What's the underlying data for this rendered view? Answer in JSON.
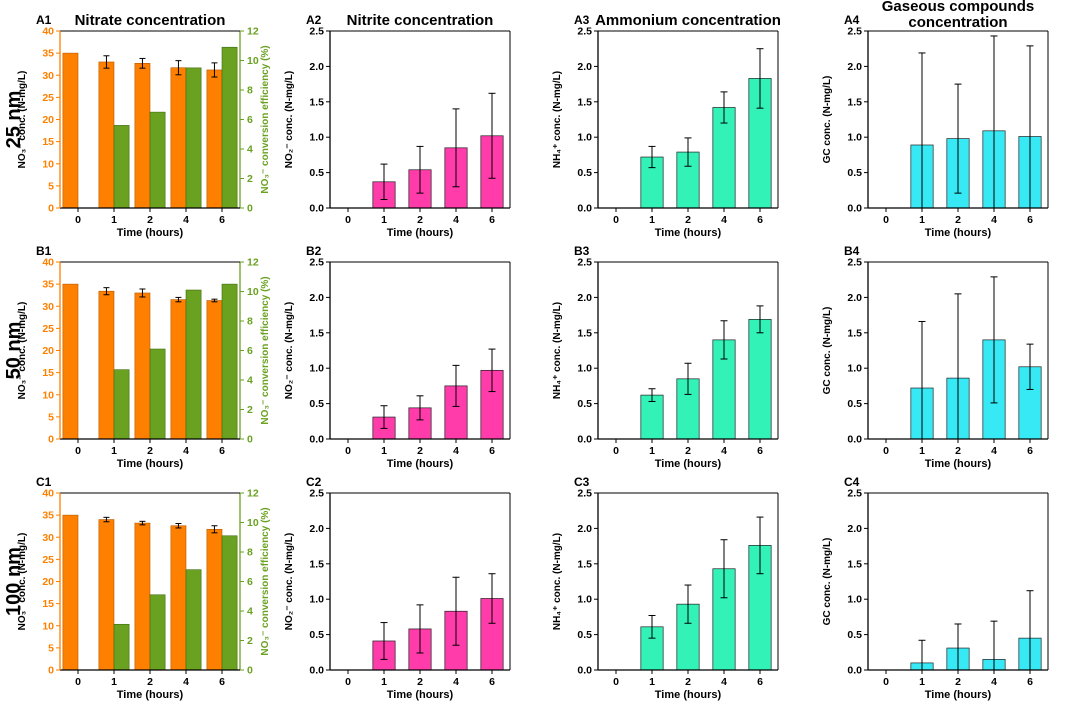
{
  "figure": {
    "row_labels": [
      "25 nm",
      "50 nm",
      "100 nm"
    ],
    "colors": {
      "nitrate": "#ff8000",
      "efficiency": "#6aa121",
      "nitrite": "#ff3caa",
      "ammonium": "#33f2b8",
      "gaseous": "#36e9f5",
      "axis": "#000000"
    }
  },
  "chart_data": [
    {
      "id": "A1",
      "type": "bar",
      "title": "Nitrate concentration",
      "panel_label": "A1",
      "categories": [
        "0",
        "1",
        "2",
        "4",
        "6"
      ],
      "xlabel": "Time (hours)",
      "ylabel": "NO₃⁻ conc. (N-mg/L)",
      "ylim": [
        0,
        40
      ],
      "yticks": [
        "0",
        "5",
        "10",
        "15",
        "20",
        "25",
        "30",
        "35",
        "40"
      ],
      "y2label": "NO₃⁻ conversion efficiency (%)",
      "y2lim": [
        0,
        12
      ],
      "y2ticks": [
        "0",
        "2",
        "4",
        "6",
        "8",
        "10",
        "12"
      ],
      "series": [
        {
          "name": "NO₃⁻ conc.",
          "values": [
            35.0,
            33.0,
            32.7,
            31.7,
            31.2
          ],
          "errors": [
            0,
            1.4,
            1.1,
            1.6,
            1.6
          ]
        },
        {
          "name": "NO₃⁻ conversion efficiency",
          "values": [
            0,
            5.6,
            6.5,
            9.5,
            10.9
          ],
          "errors": [
            0,
            0,
            0,
            0,
            0
          ]
        }
      ]
    },
    {
      "id": "A2",
      "type": "bar",
      "title": "Nitrite concentration",
      "panel_label": "A2",
      "categories": [
        "0",
        "1",
        "2",
        "4",
        "6"
      ],
      "xlabel": "Time (hours)",
      "ylabel": "NO₂⁻ conc. (N-mg/L)",
      "ylim": [
        0,
        2.5
      ],
      "yticks": [
        "0.0",
        "0.5",
        "1.0",
        "1.5",
        "2.0",
        "2.5"
      ],
      "series": [
        {
          "name": "NO₂⁻ conc.",
          "values": [
            0,
            0.37,
            0.54,
            0.85,
            1.02
          ],
          "errors": [
            0,
            0.25,
            0.33,
            0.55,
            0.6
          ]
        }
      ]
    },
    {
      "id": "A3",
      "type": "bar",
      "title": "Ammonium concentration",
      "panel_label": "A3",
      "categories": [
        "0",
        "1",
        "2",
        "4",
        "6"
      ],
      "xlabel": "Time (hours)",
      "ylabel": "NH₄⁺ conc. (N-mg/L)",
      "ylim": [
        0,
        2.5
      ],
      "yticks": [
        "0.0",
        "0.5",
        "1.0",
        "1.5",
        "2.0",
        "2.5"
      ],
      "series": [
        {
          "name": "NH₄⁺ conc.",
          "values": [
            0,
            0.72,
            0.79,
            1.42,
            1.83
          ],
          "errors": [
            0,
            0.15,
            0.2,
            0.22,
            0.42
          ]
        }
      ]
    },
    {
      "id": "A4",
      "type": "bar",
      "title": "Gaseous compounds concentration",
      "panel_label": "A4",
      "categories": [
        "0",
        "1",
        "2",
        "4",
        "6"
      ],
      "xlabel": "Time (hours)",
      "ylabel": "GC conc. (N-mg/L)",
      "ylim": [
        0,
        2.5
      ],
      "yticks": [
        "0.0",
        "0.5",
        "1.0",
        "1.5",
        "2.0",
        "2.5"
      ],
      "series": [
        {
          "name": "GC conc.",
          "values": [
            0,
            0.89,
            0.98,
            1.09,
            1.01
          ],
          "errors": [
            0,
            1.3,
            0.77,
            1.34,
            1.28
          ]
        }
      ]
    },
    {
      "id": "B1",
      "type": "bar",
      "title": "",
      "panel_label": "B1",
      "categories": [
        "0",
        "1",
        "2",
        "4",
        "6"
      ],
      "xlabel": "Time (hours)",
      "ylabel": "NO₃⁻ conc. (N-mg/L)",
      "ylim": [
        0,
        40
      ],
      "yticks": [
        "0",
        "5",
        "10",
        "15",
        "20",
        "25",
        "30",
        "35",
        "40"
      ],
      "y2label": "NO₃⁻ conversion efficiency (%)",
      "y2lim": [
        0,
        12
      ],
      "y2ticks": [
        "0",
        "2",
        "4",
        "6",
        "8",
        "10",
        "12"
      ],
      "series": [
        {
          "name": "NO₃⁻ conc.",
          "values": [
            35.0,
            33.4,
            33.0,
            31.5,
            31.3
          ],
          "errors": [
            0,
            0.8,
            0.9,
            0.5,
            0.3
          ]
        },
        {
          "name": "NO₃⁻ conversion efficiency",
          "values": [
            0,
            4.7,
            6.1,
            10.1,
            10.5
          ],
          "errors": [
            0,
            0,
            0,
            0,
            0
          ]
        }
      ]
    },
    {
      "id": "B2",
      "type": "bar",
      "title": "",
      "panel_label": "B2",
      "categories": [
        "0",
        "1",
        "2",
        "4",
        "6"
      ],
      "xlabel": "Time (hours)",
      "ylabel": "NO₂⁻ conc. (N-mg/L)",
      "ylim": [
        0,
        2.5
      ],
      "yticks": [
        "0.0",
        "0.5",
        "1.0",
        "1.5",
        "2.0",
        "2.5"
      ],
      "series": [
        {
          "name": "NO₂⁻ conc.",
          "values": [
            0,
            0.31,
            0.44,
            0.75,
            0.97
          ],
          "errors": [
            0,
            0.16,
            0.17,
            0.29,
            0.3
          ]
        }
      ]
    },
    {
      "id": "B3",
      "type": "bar",
      "title": "",
      "panel_label": "B3",
      "categories": [
        "0",
        "1",
        "2",
        "4",
        "6"
      ],
      "xlabel": "Time (hours)",
      "ylabel": "NH₄⁺ conc. (N-mg/L)",
      "ylim": [
        0,
        2.5
      ],
      "yticks": [
        "0.0",
        "0.5",
        "1.0",
        "1.5",
        "2.0",
        "2.5"
      ],
      "series": [
        {
          "name": "NH₄⁺ conc.",
          "values": [
            0,
            0.62,
            0.85,
            1.4,
            1.69
          ],
          "errors": [
            0,
            0.09,
            0.22,
            0.27,
            0.19
          ]
        }
      ]
    },
    {
      "id": "B4",
      "type": "bar",
      "title": "",
      "panel_label": "B4",
      "categories": [
        "0",
        "1",
        "2",
        "4",
        "6"
      ],
      "xlabel": "Time (hours)",
      "ylabel": "GC conc. (N-mg/L)",
      "ylim": [
        0,
        2.5
      ],
      "yticks": [
        "0.0",
        "0.5",
        "1.0",
        "1.5",
        "2.0",
        "2.5"
      ],
      "series": [
        {
          "name": "GC conc.",
          "values": [
            0,
            0.72,
            0.86,
            1.4,
            1.02
          ],
          "errors": [
            0,
            0.94,
            1.19,
            0.89,
            0.32
          ]
        }
      ]
    },
    {
      "id": "C1",
      "type": "bar",
      "title": "",
      "panel_label": "C1",
      "categories": [
        "0",
        "1",
        "2",
        "4",
        "6"
      ],
      "xlabel": "Time (hours)",
      "ylabel": "NO₃⁻ conc. (N-mg/L)",
      "ylim": [
        0,
        40
      ],
      "yticks": [
        "0",
        "5",
        "10",
        "15",
        "20",
        "25",
        "30",
        "35",
        "40"
      ],
      "y2label": "NO₃⁻ conversion efficiency (%)",
      "y2lim": [
        0,
        12
      ],
      "y2ticks": [
        "0",
        "2",
        "4",
        "6",
        "8",
        "10",
        "12"
      ],
      "series": [
        {
          "name": "NO₃⁻ conc.",
          "values": [
            35.0,
            34.0,
            33.2,
            32.6,
            31.8
          ],
          "errors": [
            0,
            0.5,
            0.4,
            0.5,
            0.8
          ]
        },
        {
          "name": "NO₃⁻ conversion efficiency",
          "values": [
            0,
            3.1,
            5.1,
            6.8,
            9.1
          ],
          "errors": [
            0,
            0,
            0,
            0,
            0
          ]
        }
      ]
    },
    {
      "id": "C2",
      "type": "bar",
      "title": "",
      "panel_label": "C2",
      "categories": [
        "0",
        "1",
        "2",
        "4",
        "6"
      ],
      "xlabel": "Time (hours)",
      "ylabel": "NO₂⁻ conc. (N-mg/L)",
      "ylim": [
        0,
        2.5
      ],
      "yticks": [
        "0.0",
        "0.5",
        "1.0",
        "1.5",
        "2.0",
        "2.5"
      ],
      "series": [
        {
          "name": "NO₂⁻ conc.",
          "values": [
            0,
            0.41,
            0.58,
            0.83,
            1.01
          ],
          "errors": [
            0,
            0.26,
            0.34,
            0.48,
            0.35
          ]
        }
      ]
    },
    {
      "id": "C3",
      "type": "bar",
      "title": "",
      "panel_label": "C3",
      "categories": [
        "0",
        "1",
        "2",
        "4",
        "6"
      ],
      "xlabel": "Time (hours)",
      "ylabel": "NH₄⁺ conc. (N-mg/L)",
      "ylim": [
        0,
        2.5
      ],
      "yticks": [
        "0.0",
        "0.5",
        "1.0",
        "1.5",
        "2.0",
        "2.5"
      ],
      "series": [
        {
          "name": "NH₄⁺ conc.",
          "values": [
            0,
            0.61,
            0.93,
            1.43,
            1.76
          ],
          "errors": [
            0,
            0.16,
            0.27,
            0.41,
            0.4
          ]
        }
      ]
    },
    {
      "id": "C4",
      "type": "bar",
      "title": "",
      "panel_label": "C4",
      "categories": [
        "0",
        "1",
        "2",
        "4",
        "6"
      ],
      "xlabel": "Time (hours)",
      "ylabel": "GC conc. (N-mg/L)",
      "ylim": [
        0,
        2.5
      ],
      "yticks": [
        "0.0",
        "0.5",
        "1.0",
        "1.5",
        "2.0",
        "2.5"
      ],
      "series": [
        {
          "name": "GC conc.",
          "values": [
            0,
            0.1,
            0.31,
            0.15,
            0.45
          ],
          "errors": [
            0,
            0.32,
            0.34,
            0.54,
            0.67
          ]
        }
      ]
    }
  ]
}
